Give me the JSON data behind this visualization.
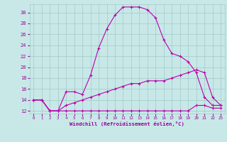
{
  "background_color": "#c8e8e8",
  "grid_color": "#a0c8c8",
  "line_color": "#bb00aa",
  "xlabel": "Windchill (Refroidissement éolien,°C)",
  "xlabel_color": "#990099",
  "tick_color": "#990099",
  "xlim": [
    -0.5,
    23.5
  ],
  "ylim": [
    11.5,
    31.5
  ],
  "yticks": [
    12,
    14,
    16,
    18,
    20,
    22,
    24,
    26,
    28,
    30
  ],
  "xticks": [
    0,
    1,
    2,
    3,
    4,
    5,
    6,
    7,
    8,
    9,
    10,
    11,
    12,
    13,
    14,
    15,
    16,
    17,
    18,
    19,
    20,
    21,
    22,
    23
  ],
  "line1_x": [
    0,
    1,
    2,
    3,
    4,
    5,
    6,
    7,
    8,
    9,
    10,
    11,
    12,
    13,
    14,
    15,
    16,
    17,
    18,
    19,
    20,
    21,
    22,
    23
  ],
  "line1_y": [
    14,
    14,
    12,
    12,
    15.5,
    15.5,
    15,
    18.5,
    23.5,
    27,
    29.5,
    31,
    31,
    31,
    30.5,
    29,
    25,
    22.5,
    22,
    21,
    19,
    14.5,
    13,
    13
  ],
  "line2_x": [
    0,
    1,
    2,
    3,
    4,
    5,
    6,
    7,
    8,
    9,
    10,
    11,
    12,
    13,
    14,
    15,
    16,
    17,
    18,
    19,
    20,
    21,
    22,
    23
  ],
  "line2_y": [
    14,
    14,
    12,
    12,
    12,
    12,
    12,
    12,
    12,
    12,
    12,
    12,
    12,
    12,
    12,
    12,
    12,
    12,
    12,
    12,
    13,
    13,
    12.5,
    12.5
  ],
  "line3_x": [
    0,
    1,
    2,
    3,
    4,
    5,
    6,
    7,
    8,
    9,
    10,
    11,
    12,
    13,
    14,
    15,
    16,
    17,
    18,
    19,
    20,
    21,
    22,
    23
  ],
  "line3_y": [
    14,
    14,
    12,
    12,
    13,
    13.5,
    14,
    14.5,
    15,
    15.5,
    16,
    16.5,
    17,
    17,
    17.5,
    17.5,
    17.5,
    18,
    18.5,
    19,
    19.5,
    19,
    14.5,
    13
  ]
}
